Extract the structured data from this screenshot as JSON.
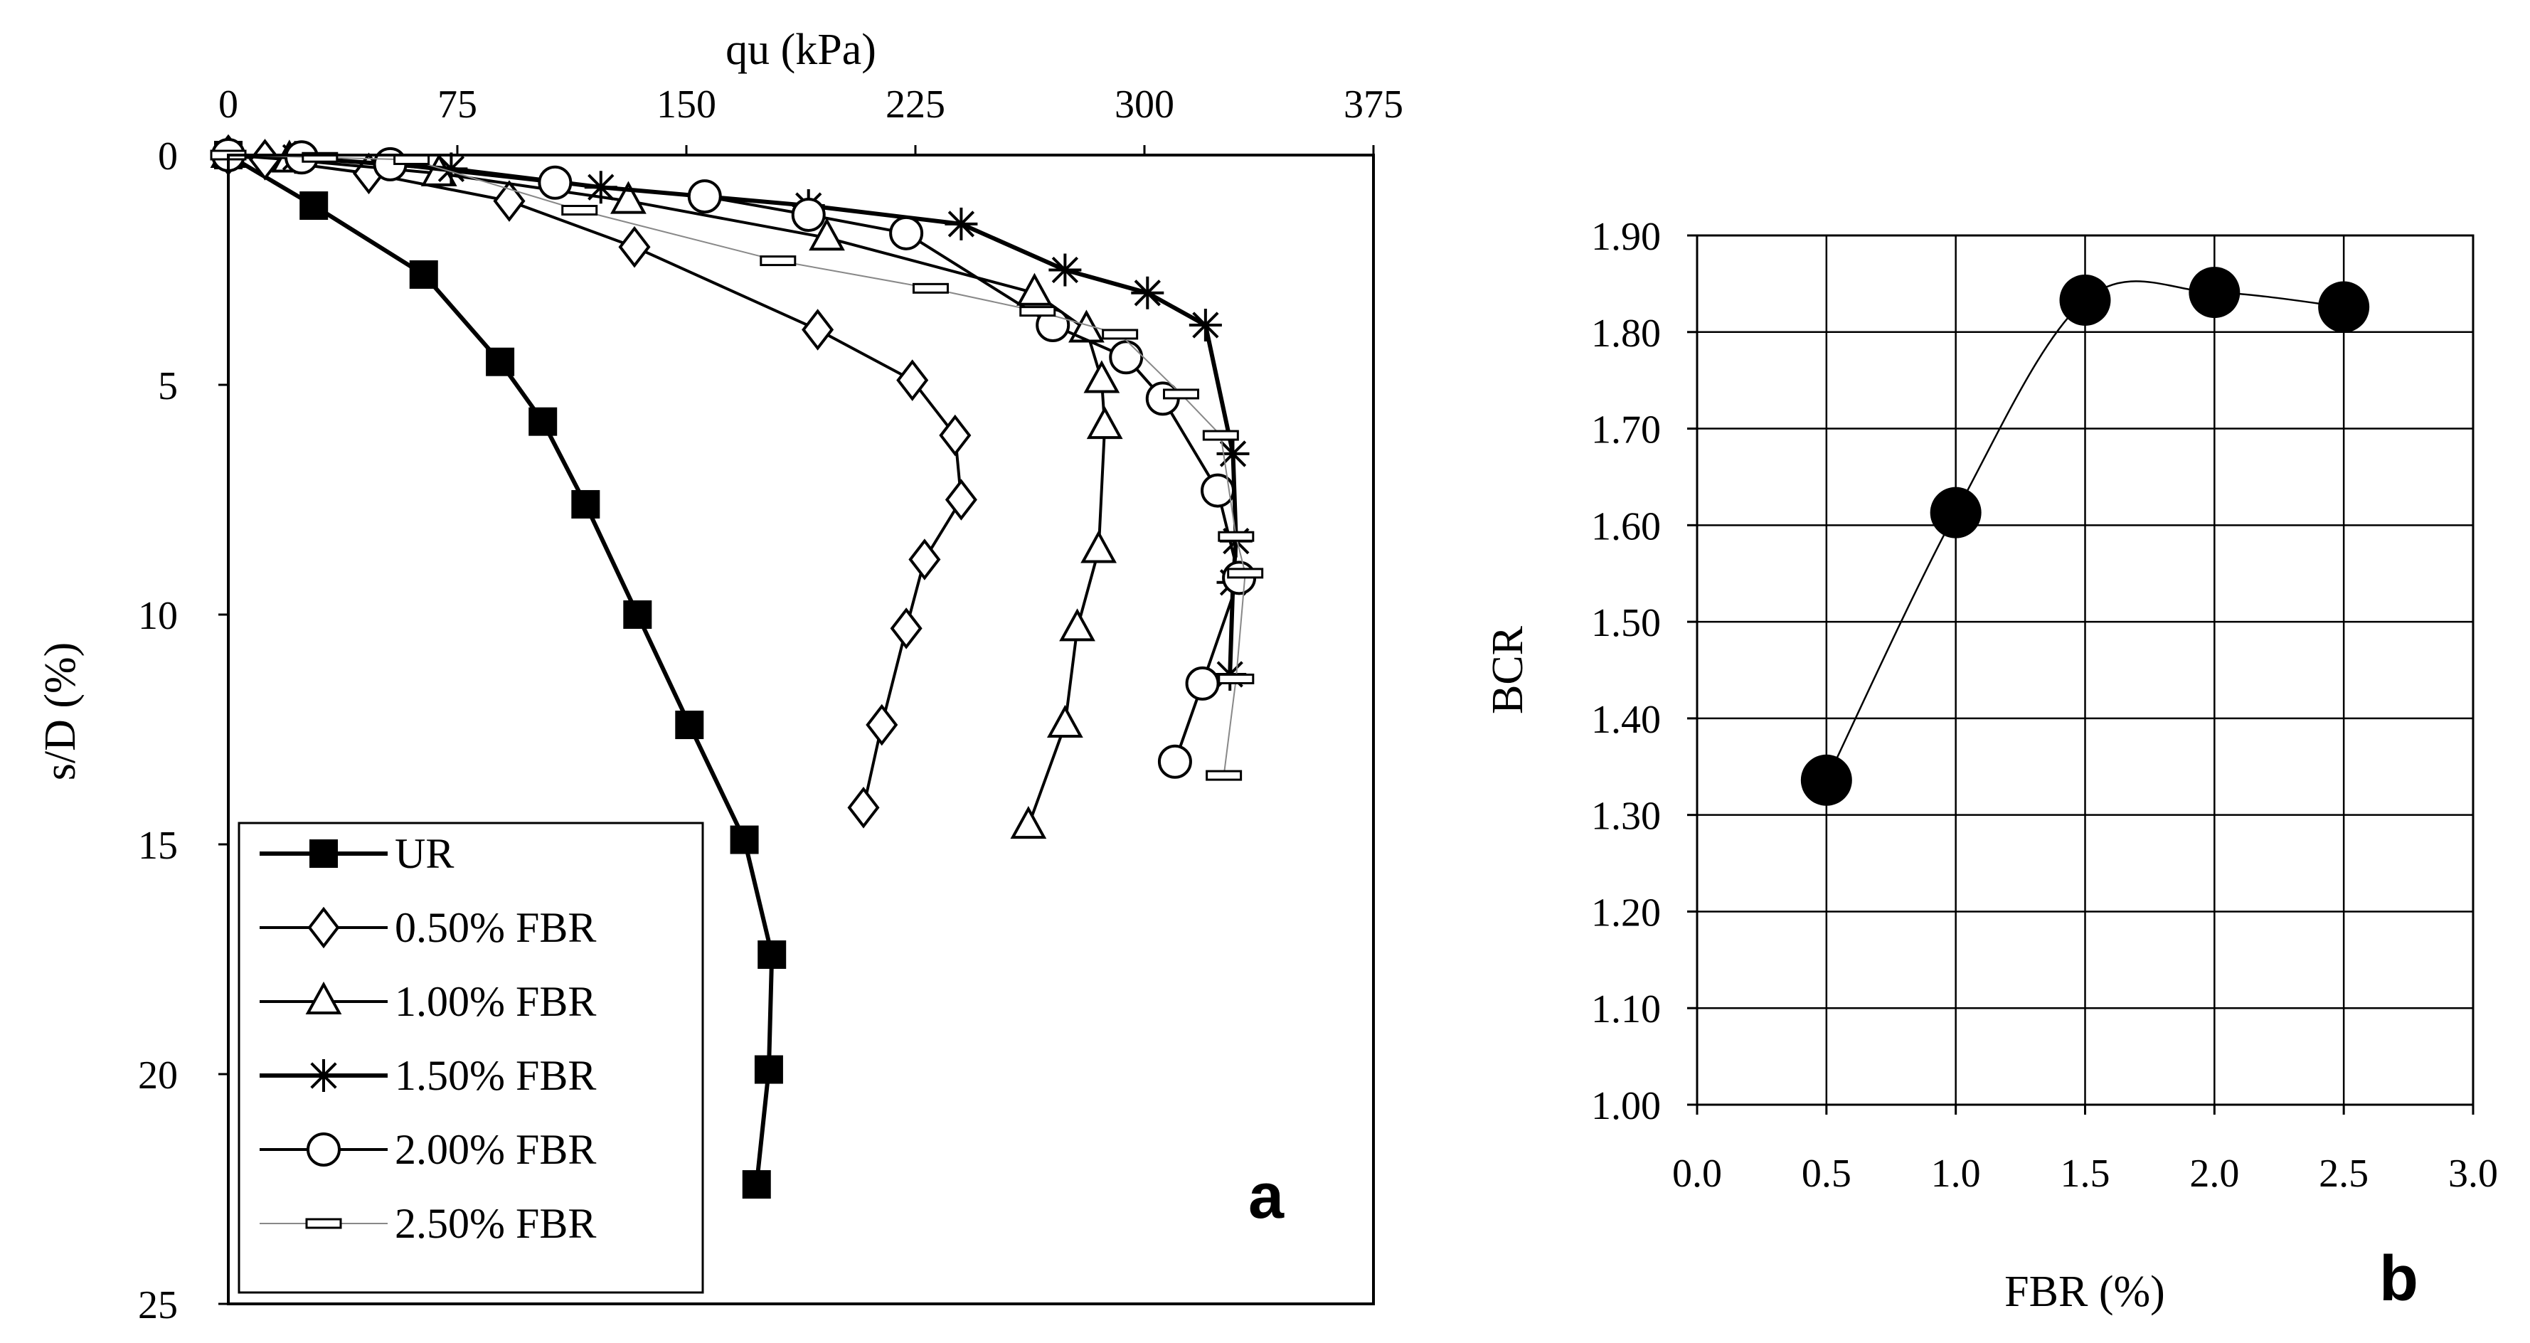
{
  "chart_data": [
    {
      "panel": "a",
      "type": "line",
      "title": "",
      "xlabel": "qu (kPa)",
      "ylabel": "s/D (%)",
      "xlim": [
        0,
        375
      ],
      "ylim": [
        0,
        25
      ],
      "x_ticks": [
        "0",
        "75",
        "150",
        "225",
        "300",
        "375"
      ],
      "y_ticks": [
        "0",
        "5",
        "10",
        "15",
        "20",
        "25"
      ],
      "x_axis_position": "top",
      "y_axis_inverted": true,
      "legend": "bottom-left",
      "series": [
        {
          "name": "UR",
          "marker": "filled-square",
          "line": "thick",
          "x": [
            0,
            28,
            64,
            89,
            103,
            117,
            134,
            151,
            169,
            178,
            177,
            173
          ],
          "y": [
            0,
            1.1,
            2.6,
            4.5,
            5.8,
            7.6,
            10.0,
            12.4,
            14.9,
            17.4,
            19.9,
            22.4
          ]
        },
        {
          "name": "0.50% FBR",
          "marker": "open-diamond",
          "line": "medium",
          "x": [
            0,
            12,
            46,
            92,
            133,
            193,
            224,
            238,
            240,
            228,
            222,
            214,
            208
          ],
          "y": [
            0,
            0.1,
            0.4,
            1.0,
            2.0,
            3.8,
            4.9,
            6.1,
            7.5,
            8.8,
            10.3,
            12.4,
            14.2
          ]
        },
        {
          "name": "1.00% FBR",
          "marker": "open-triangle",
          "line": "medium",
          "x": [
            0,
            20,
            69,
            131,
            196,
            264,
            281,
            286,
            287,
            285,
            278,
            274,
            262
          ],
          "y": [
            0,
            0.1,
            0.4,
            1.0,
            1.8,
            3.0,
            3.8,
            4.9,
            5.9,
            8.6,
            10.3,
            12.4,
            14.6
          ]
        },
        {
          "name": "1.50% FBR",
          "marker": "star",
          "line": "thick",
          "x": [
            0,
            22,
            73,
            122,
            190,
            240,
            274,
            301,
            320,
            329,
            330,
            329,
            328
          ],
          "y": [
            0,
            0.05,
            0.3,
            0.7,
            1.1,
            1.5,
            2.5,
            3.0,
            3.7,
            6.5,
            8.4,
            9.3,
            11.3
          ]
        },
        {
          "name": "2.00% FBR",
          "marker": "open-circle",
          "line": "medium",
          "x": [
            0,
            24,
            53,
            107,
            156,
            190,
            222,
            270,
            294,
            306,
            324,
            331,
            319,
            310
          ],
          "y": [
            0,
            0.05,
            0.2,
            0.6,
            0.9,
            1.3,
            1.7,
            3.7,
            4.4,
            5.3,
            7.3,
            9.2,
            11.5,
            13.2
          ]
        },
        {
          "name": "2.50% FBR",
          "marker": "open-dash",
          "line": "thin",
          "x": [
            0,
            30,
            60,
            115,
            180,
            230,
            265,
            292,
            312,
            325,
            330,
            333,
            330,
            326
          ],
          "y": [
            0,
            0.05,
            0.1,
            1.2,
            2.3,
            2.9,
            3.4,
            3.9,
            5.2,
            6.1,
            8.3,
            9.1,
            11.4,
            13.5
          ]
        }
      ]
    },
    {
      "panel": "b",
      "type": "scatter",
      "title": "",
      "xlabel": "FBR (%)",
      "ylabel": "BCR",
      "xlim": [
        0.0,
        3.0
      ],
      "ylim": [
        1.0,
        1.9
      ],
      "x_ticks": [
        "0.0",
        "0.5",
        "1.0",
        "1.5",
        "2.0",
        "2.5",
        "3.0"
      ],
      "y_ticks": [
        "1.00",
        "1.10",
        "1.20",
        "1.30",
        "1.40",
        "1.50",
        "1.60",
        "1.70",
        "1.80",
        "1.90"
      ],
      "grid": true,
      "series": [
        {
          "name": "BCR",
          "marker": "filled-circle",
          "line": "smooth",
          "x": [
            0.5,
            1.0,
            1.5,
            2.0,
            2.5
          ],
          "y": [
            1.336,
            1.613,
            1.833,
            1.841,
            1.826
          ]
        }
      ]
    }
  ],
  "panel_labels": {
    "a": "a",
    "b": "b"
  }
}
